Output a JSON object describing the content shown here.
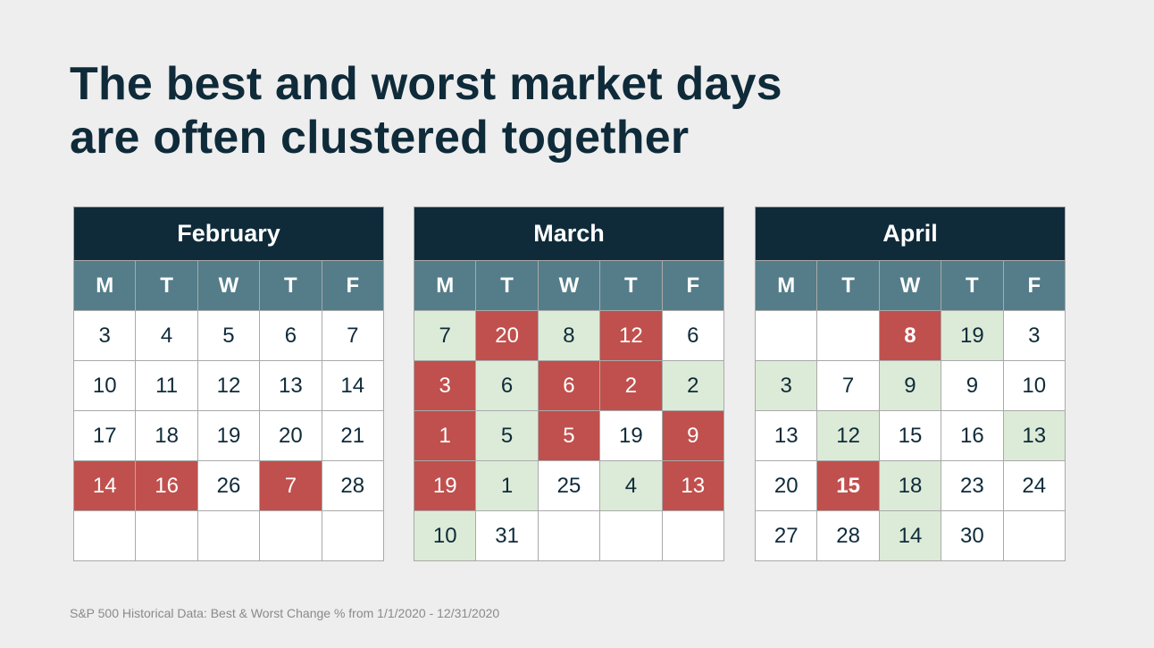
{
  "title": {
    "line1": "The best and worst market days",
    "line2": "are often clustered together"
  },
  "colors": {
    "header_bg": "#0f2b3a",
    "weekday_bg": "#547d89",
    "best_fill": "#dcebd7",
    "worst_fill": "#c0504d",
    "cell_bg": "#ffffff",
    "page_bg": "#eeeeee"
  },
  "weekdays": [
    "M",
    "T",
    "W",
    "T",
    "F"
  ],
  "calendars": [
    {
      "month": "February",
      "weeks": [
        [
          {
            "text": "3"
          },
          {
            "text": "4"
          },
          {
            "text": "5"
          },
          {
            "text": "6"
          },
          {
            "text": "7"
          }
        ],
        [
          {
            "text": "10"
          },
          {
            "text": "11"
          },
          {
            "text": "12"
          },
          {
            "text": "13"
          },
          {
            "text": "14"
          }
        ],
        [
          {
            "text": "17"
          },
          {
            "text": "18"
          },
          {
            "text": "19"
          },
          {
            "text": "20"
          },
          {
            "text": "21"
          }
        ],
        [
          {
            "text": "14",
            "status": "worst"
          },
          {
            "text": "16",
            "status": "worst"
          },
          {
            "text": "26"
          },
          {
            "text": "7",
            "status": "worst"
          },
          {
            "text": "28"
          }
        ],
        [
          {
            "text": ""
          },
          {
            "text": ""
          },
          {
            "text": ""
          },
          {
            "text": ""
          },
          {
            "text": ""
          }
        ]
      ]
    },
    {
      "month": "March",
      "weeks": [
        [
          {
            "text": "7",
            "status": "best"
          },
          {
            "text": "20",
            "status": "worst"
          },
          {
            "text": "8",
            "status": "best"
          },
          {
            "text": "12",
            "status": "worst"
          },
          {
            "text": "6"
          }
        ],
        [
          {
            "text": "3",
            "status": "worst"
          },
          {
            "text": "6",
            "status": "best"
          },
          {
            "text": "6",
            "status": "worst"
          },
          {
            "text": "2",
            "status": "worst"
          },
          {
            "text": "2",
            "status": "best"
          }
        ],
        [
          {
            "text": "1",
            "status": "worst"
          },
          {
            "text": "5",
            "status": "best"
          },
          {
            "text": "5",
            "status": "worst"
          },
          {
            "text": "19"
          },
          {
            "text": "9",
            "status": "worst"
          }
        ],
        [
          {
            "text": "19",
            "status": "worst"
          },
          {
            "text": "1",
            "status": "best"
          },
          {
            "text": "25"
          },
          {
            "text": "4",
            "status": "best"
          },
          {
            "text": "13",
            "status": "worst"
          }
        ],
        [
          {
            "text": "10",
            "status": "best"
          },
          {
            "text": "31"
          },
          {
            "text": ""
          },
          {
            "text": ""
          },
          {
            "text": ""
          }
        ]
      ]
    },
    {
      "month": "April",
      "weeks": [
        [
          {
            "text": ""
          },
          {
            "text": ""
          },
          {
            "text": "8",
            "status": "worst",
            "bold": true
          },
          {
            "text": "19",
            "status": "best"
          },
          {
            "text": "3"
          }
        ],
        [
          {
            "text": "3",
            "status": "best"
          },
          {
            "text": "7"
          },
          {
            "text": "9",
            "status": "best"
          },
          {
            "text": "9"
          },
          {
            "text": "10"
          }
        ],
        [
          {
            "text": "13"
          },
          {
            "text": "12",
            "status": "best"
          },
          {
            "text": "15"
          },
          {
            "text": "16"
          },
          {
            "text": "13",
            "status": "best"
          }
        ],
        [
          {
            "text": "20"
          },
          {
            "text": "15",
            "status": "worst",
            "bold": true
          },
          {
            "text": "18",
            "status": "best"
          },
          {
            "text": "23"
          },
          {
            "text": "24"
          }
        ],
        [
          {
            "text": "27"
          },
          {
            "text": "28"
          },
          {
            "text": "14",
            "status": "best"
          },
          {
            "text": "30"
          },
          {
            "text": ""
          }
        ]
      ]
    }
  ],
  "footnote": "S&P 500 Historical Data: Best & Worst Change % from 1/1/2020 - 12/31/2020"
}
